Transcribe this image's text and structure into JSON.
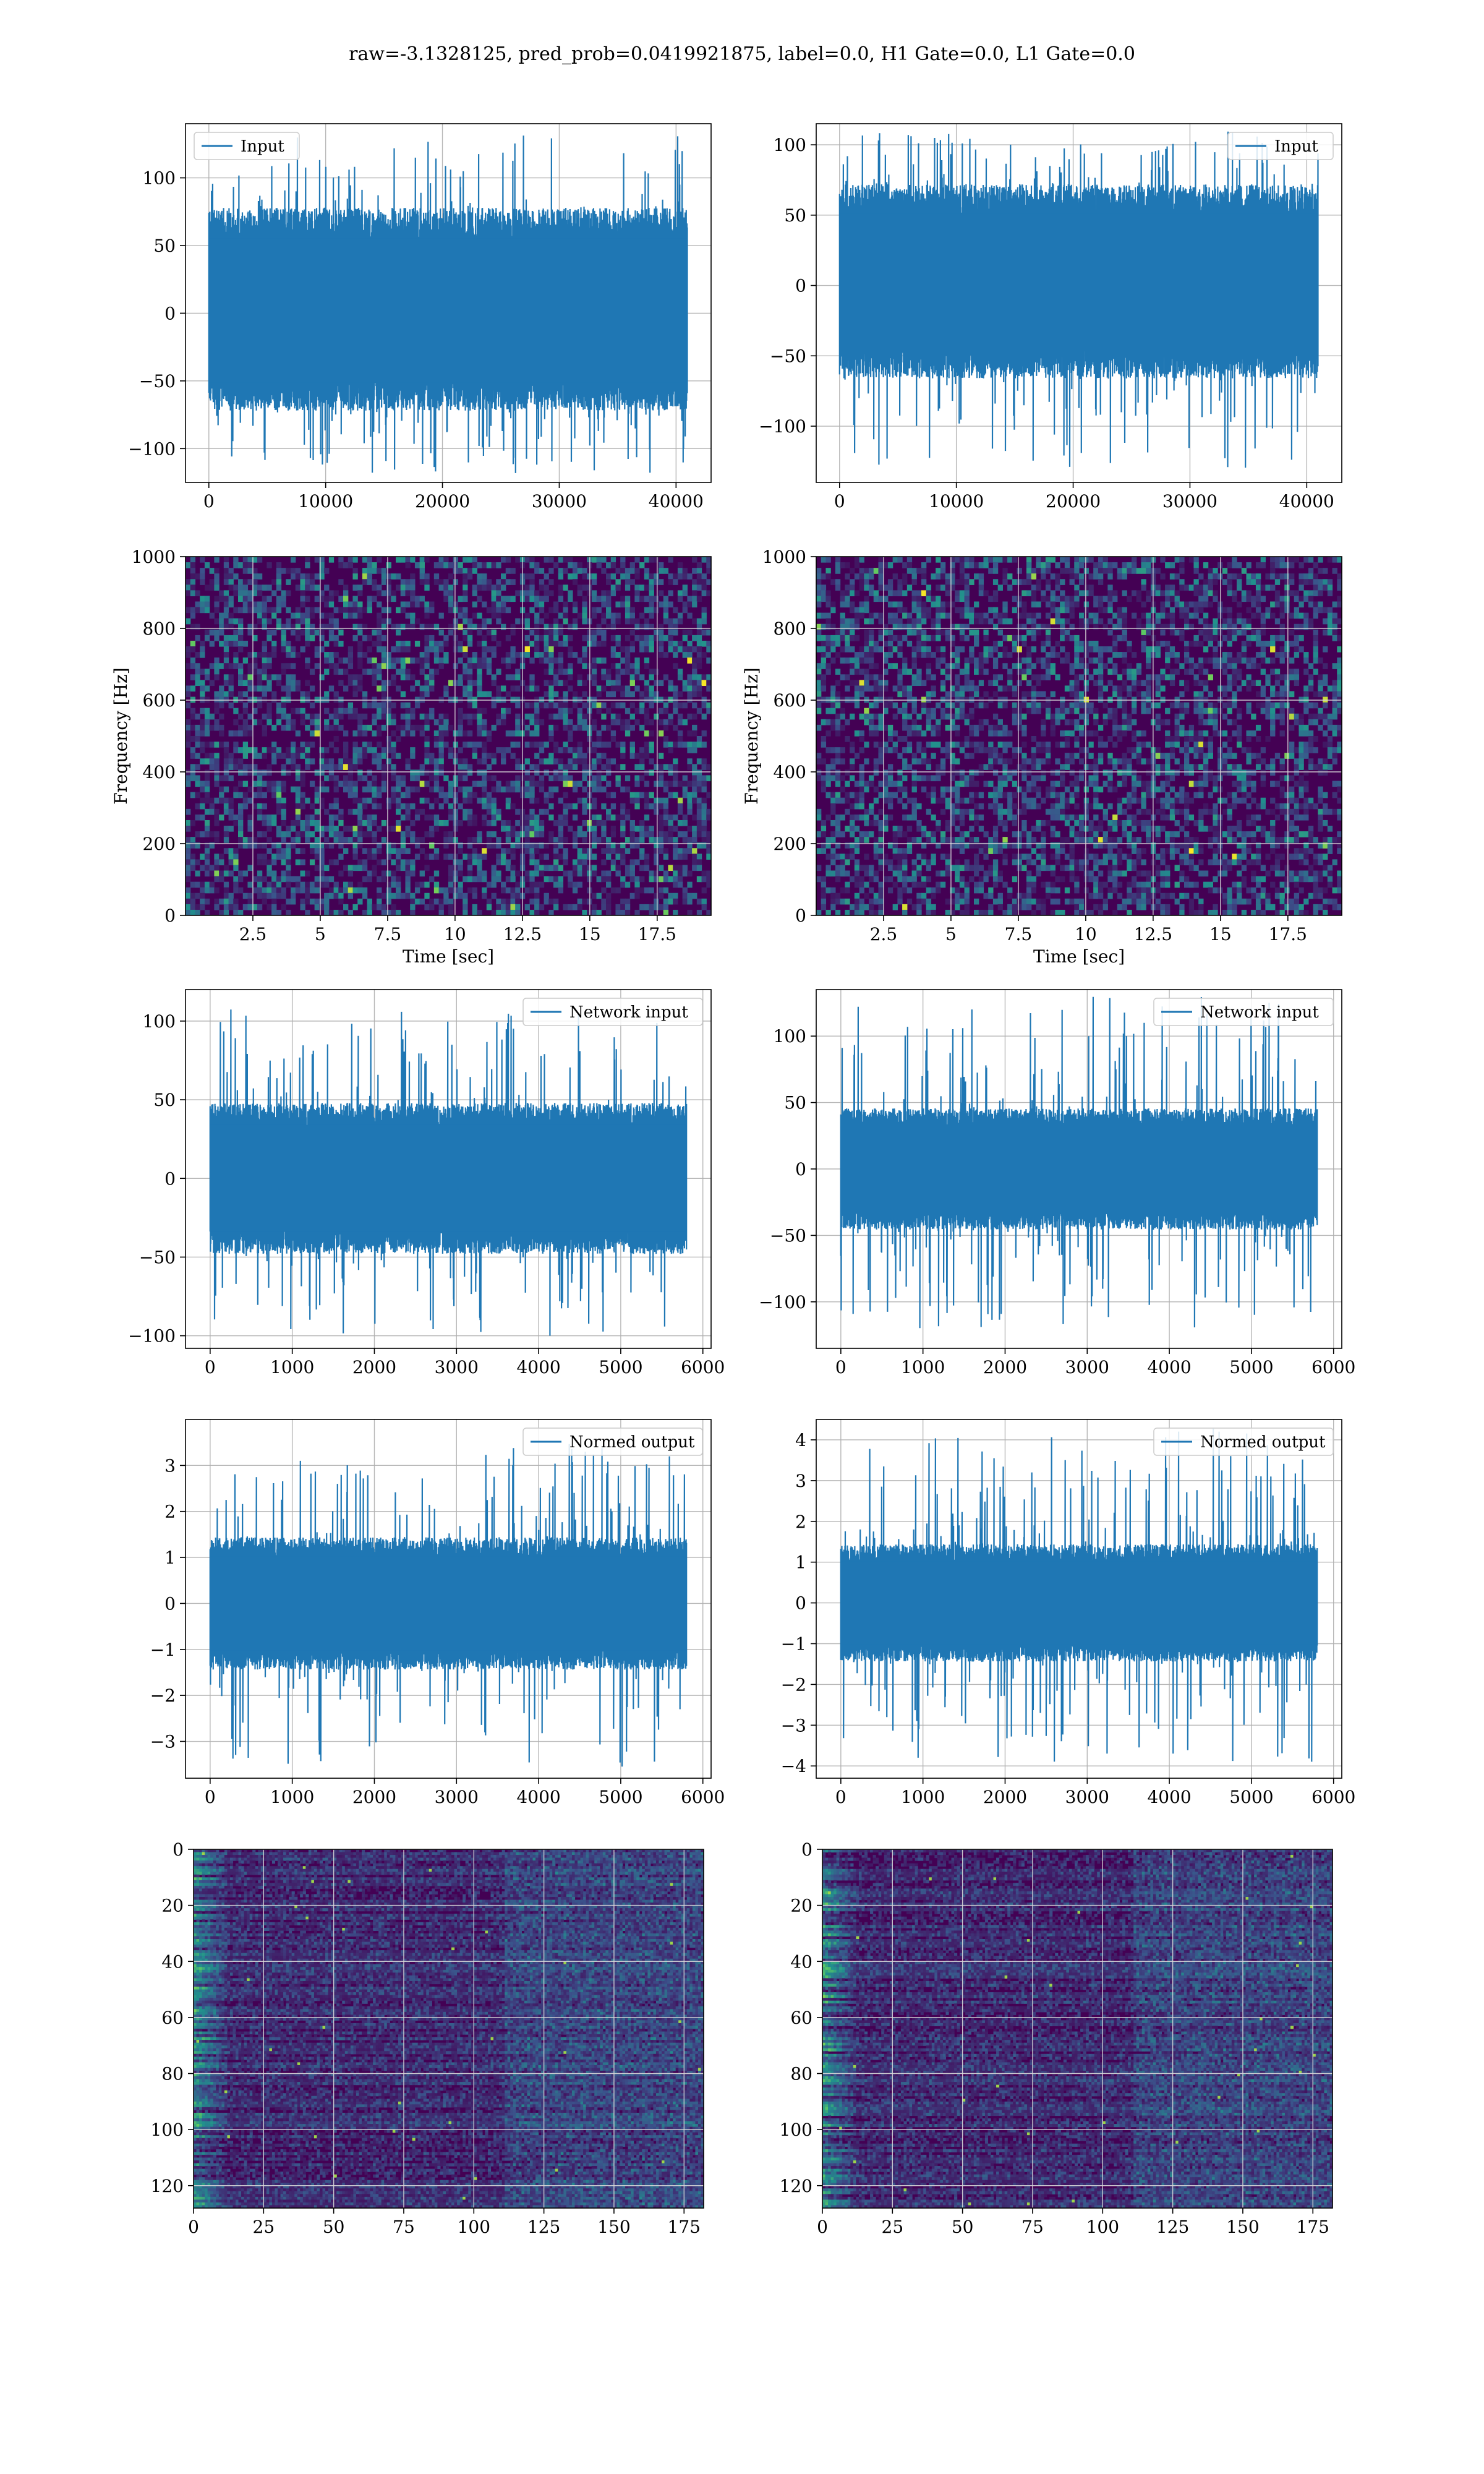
{
  "title": "raw=-3.1328125, pred_prob=0.0419921875, label=0.0, H1 Gate=0.0, L1 Gate=0.0",
  "colors": {
    "series": "#1f77b4",
    "grid": "#b0b0b0",
    "viridis_dark": "#440154",
    "viridis_mid": "#21908d",
    "viridis_bright": "#fde725"
  },
  "chart_data": [
    {
      "id": "input-h1",
      "type": "line",
      "title": "",
      "xlabel": "",
      "ylabel": "",
      "xlim": [
        -2000,
        43000
      ],
      "ylim": [
        -125,
        140
      ],
      "x_ticks": [
        0,
        10000,
        20000,
        30000,
        40000
      ],
      "y_ticks": [
        -100,
        -50,
        0,
        50,
        100
      ],
      "legend": "upper left",
      "series": [
        {
          "name": "Input",
          "n_points": 40960,
          "band": [
            -60,
            65
          ],
          "peaks": [
            -120,
            135
          ]
        }
      ]
    },
    {
      "id": "input-l1",
      "type": "line",
      "title": "",
      "xlabel": "",
      "ylabel": "",
      "xlim": [
        -2000,
        43000
      ],
      "ylim": [
        -140,
        115
      ],
      "x_ticks": [
        0,
        10000,
        20000,
        30000,
        40000
      ],
      "y_ticks": [
        -100,
        -50,
        0,
        50,
        100
      ],
      "legend": "upper right",
      "series": [
        {
          "name": "Input",
          "n_points": 40960,
          "band": [
            -55,
            60
          ],
          "peaks": [
            -130,
            110
          ]
        }
      ]
    },
    {
      "id": "spectrogram-h1",
      "type": "heatmap",
      "title": "",
      "xlabel": "Time [sec]",
      "ylabel": "Frequency [Hz]",
      "xlim": [
        0,
        19.5
      ],
      "ylim": [
        0,
        1000
      ],
      "x_ticks": [
        2.5,
        5.0,
        7.5,
        10.0,
        12.5,
        15.0,
        17.5
      ],
      "y_ticks": [
        0,
        200,
        400,
        600,
        800,
        1000
      ],
      "colormap": "viridis"
    },
    {
      "id": "spectrogram-l1",
      "type": "heatmap",
      "title": "",
      "xlabel": "Time [sec]",
      "ylabel": "Frequency [Hz]",
      "xlim": [
        0,
        19.5
      ],
      "ylim": [
        0,
        1000
      ],
      "x_ticks": [
        2.5,
        5.0,
        7.5,
        10.0,
        12.5,
        15.0,
        17.5
      ],
      "y_ticks": [
        0,
        200,
        400,
        600,
        800,
        1000
      ],
      "colormap": "viridis"
    },
    {
      "id": "network-input-h1",
      "type": "line",
      "title": "",
      "xlabel": "",
      "ylabel": "",
      "xlim": [
        -300,
        6100
      ],
      "ylim": [
        -108,
        120
      ],
      "x_ticks": [
        0,
        1000,
        2000,
        3000,
        4000,
        5000,
        6000
      ],
      "y_ticks": [
        -100,
        -50,
        0,
        50,
        100
      ],
      "legend": "upper right",
      "series": [
        {
          "name": "Network input",
          "n_points": 5800,
          "band": [
            -40,
            40
          ],
          "peaks": [
            -100,
            108
          ]
        }
      ]
    },
    {
      "id": "network-input-l1",
      "type": "line",
      "title": "",
      "xlabel": "",
      "ylabel": "",
      "xlim": [
        -300,
        6100
      ],
      "ylim": [
        -135,
        135
      ],
      "x_ticks": [
        0,
        1000,
        2000,
        3000,
        4000,
        5000,
        6000
      ],
      "y_ticks": [
        -100,
        -50,
        0,
        50,
        100
      ],
      "legend": "upper right",
      "series": [
        {
          "name": "Network input",
          "n_points": 5800,
          "band": [
            -38,
            38
          ],
          "peaks": [
            -120,
            130
          ]
        }
      ]
    },
    {
      "id": "normed-output-h1",
      "type": "line",
      "title": "",
      "xlabel": "",
      "ylabel": "",
      "xlim": [
        -300,
        6100
      ],
      "ylim": [
        -3.8,
        4.0
      ],
      "x_ticks": [
        0,
        1000,
        2000,
        3000,
        4000,
        5000,
        6000
      ],
      "y_ticks": [
        -3,
        -2,
        -1,
        0,
        1,
        2,
        3
      ],
      "legend": "upper right",
      "series": [
        {
          "name": "Normed output",
          "n_points": 5800,
          "band": [
            -1.2,
            1.2
          ],
          "peaks": [
            -3.6,
            3.5
          ]
        }
      ]
    },
    {
      "id": "normed-output-l1",
      "type": "line",
      "title": "",
      "xlabel": "",
      "ylabel": "",
      "xlim": [
        -300,
        6100
      ],
      "ylim": [
        -4.3,
        4.5
      ],
      "x_ticks": [
        0,
        1000,
        2000,
        3000,
        4000,
        5000,
        6000
      ],
      "y_ticks": [
        -4,
        -3,
        -2,
        -1,
        0,
        1,
        2,
        3,
        4
      ],
      "legend": "upper right",
      "series": [
        {
          "name": "Normed output",
          "n_points": 5800,
          "band": [
            -1.2,
            1.2
          ],
          "peaks": [
            -3.9,
            4.3
          ]
        }
      ]
    },
    {
      "id": "feature-map-h1",
      "type": "heatmap",
      "title": "",
      "xlabel": "",
      "ylabel": "",
      "xlim": [
        0,
        182
      ],
      "ylim": [
        128,
        0
      ],
      "x_ticks": [
        0,
        25,
        50,
        75,
        100,
        125,
        150,
        175
      ],
      "y_ticks": [
        0,
        20,
        40,
        60,
        80,
        100,
        120
      ],
      "colormap": "viridis"
    },
    {
      "id": "feature-map-l1",
      "type": "heatmap",
      "title": "",
      "xlabel": "",
      "ylabel": "",
      "xlim": [
        0,
        182
      ],
      "ylim": [
        128,
        0
      ],
      "x_ticks": [
        0,
        25,
        50,
        75,
        100,
        125,
        150,
        175
      ],
      "y_ticks": [
        0,
        20,
        40,
        60,
        80,
        100,
        120
      ],
      "colormap": "viridis"
    }
  ]
}
